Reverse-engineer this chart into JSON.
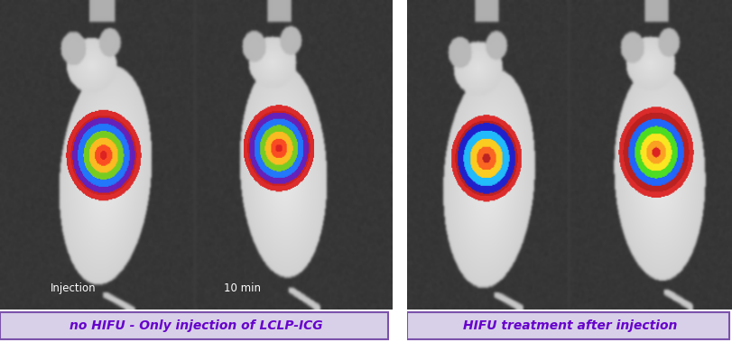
{
  "fig_width": 8.12,
  "fig_height": 3.79,
  "dpi": 100,
  "bg_color": "#ffffff",
  "dark_bg": 55,
  "label_left_text": "no HIFU - Only injection of LCLP-ICG",
  "label_right_text": "HIFU treatment after injection",
  "label_bg_color": "#d8d0e8",
  "label_border_color": "#7B52AB",
  "label_text_color": "#6600cc",
  "label_fontsize": 10.0,
  "annotation_injection": "Injection",
  "annotation_10min": "10 min",
  "annotation_color": "#ffffff",
  "annotation_fontsize": 8.5
}
